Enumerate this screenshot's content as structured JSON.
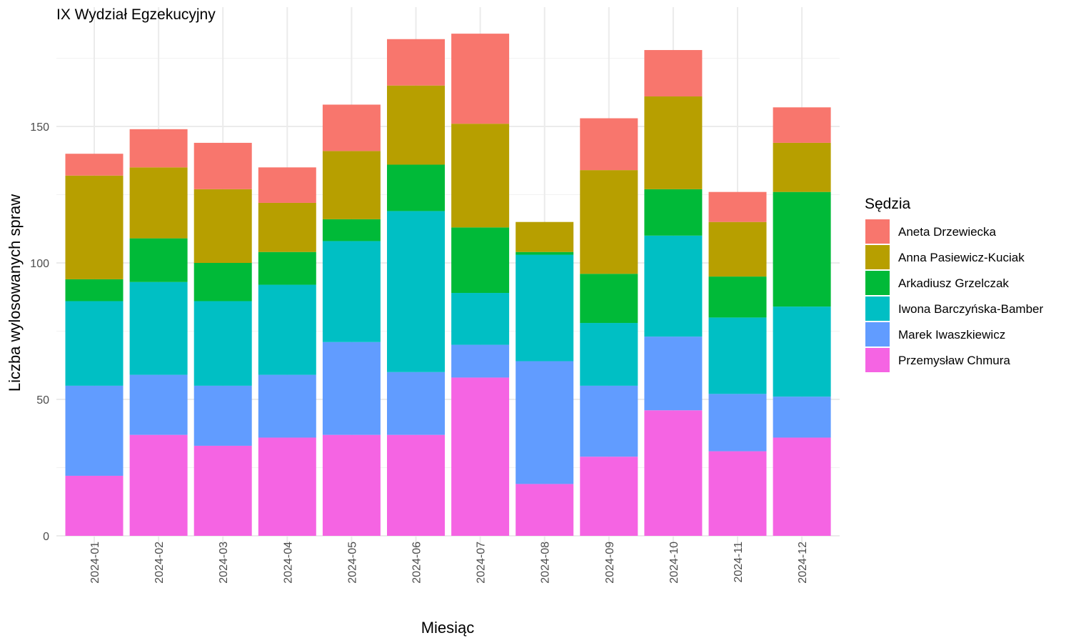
{
  "chart_data": {
    "type": "bar",
    "stacked": true,
    "title": "IX Wydział Egzekucyjny",
    "xlabel": "Miesiąc",
    "ylabel": "Liczba wylosowanych spraw",
    "ylim": [
      0,
      185
    ],
    "yticks": [
      0,
      50,
      100,
      150
    ],
    "grid": true,
    "legend_position": "right",
    "legend_title": "Sędzia",
    "categories": [
      "2024-01",
      "2024-02",
      "2024-03",
      "2024-04",
      "2024-05",
      "2024-06",
      "2024-07",
      "2024-08",
      "2024-09",
      "2024-10",
      "2024-11",
      "2024-12"
    ],
    "series": [
      {
        "name": "Przemysław Chmura",
        "color": "#F564E3",
        "values": [
          22,
          37,
          33,
          36,
          37,
          37,
          58,
          19,
          29,
          46,
          31,
          36
        ]
      },
      {
        "name": "Marek Iwaszkiewicz",
        "color": "#619CFF",
        "values": [
          33,
          22,
          22,
          23,
          34,
          23,
          12,
          45,
          26,
          27,
          21,
          15
        ]
      },
      {
        "name": "Iwona Barczyńska-Bamber",
        "color": "#00BFC4",
        "values": [
          31,
          34,
          31,
          33,
          37,
          59,
          19,
          39,
          23,
          37,
          28,
          33
        ]
      },
      {
        "name": "Arkadiusz Grzelczak",
        "color": "#00BA38",
        "values": [
          8,
          16,
          14,
          12,
          8,
          17,
          24,
          1,
          18,
          17,
          15,
          42
        ]
      },
      {
        "name": "Anna Pasiewicz-Kuciak",
        "color": "#B79F00",
        "values": [
          38,
          26,
          27,
          18,
          25,
          29,
          38,
          11,
          38,
          34,
          20,
          18
        ]
      },
      {
        "name": "Aneta Drzewiecka",
        "color": "#F8766D",
        "values": [
          8,
          14,
          17,
          13,
          17,
          17,
          33,
          0,
          19,
          17,
          11,
          13
        ]
      }
    ],
    "legend_order": [
      "Aneta Drzewiecka",
      "Anna Pasiewicz-Kuciak",
      "Arkadiusz Grzelczak",
      "Iwona Barczyńska-Bamber",
      "Marek Iwaszkiewicz",
      "Przemysław Chmura"
    ]
  }
}
